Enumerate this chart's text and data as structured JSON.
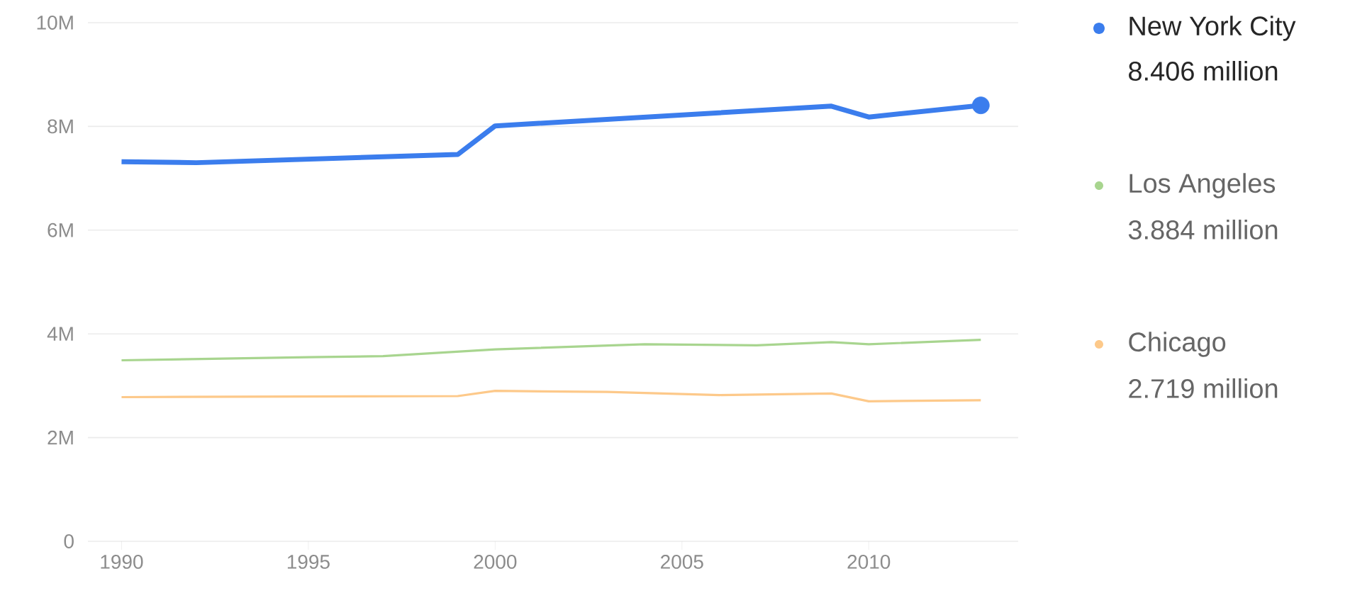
{
  "chart_data": {
    "type": "line",
    "xlim": [
      1989.1,
      2014
    ],
    "ylim": [
      0,
      10
    ],
    "xticks": [
      1990,
      1995,
      2000,
      2005,
      2010
    ],
    "yticks": [
      {
        "value": 0,
        "label": "0"
      },
      {
        "value": 2,
        "label": "2M"
      },
      {
        "value": 4,
        "label": "4M"
      },
      {
        "value": 6,
        "label": "6M"
      },
      {
        "value": 8,
        "label": "8M"
      },
      {
        "value": 10,
        "label": "10M"
      }
    ],
    "grid": "y",
    "legend": "right",
    "marker": "none",
    "line_style": "solid",
    "series": [
      {
        "name": "New York City",
        "color": "#3b7ded",
        "x": [
          1990,
          1992,
          1999,
          2000,
          2009,
          2010,
          2013
        ],
        "values": [
          7.32,
          7.3,
          7.46,
          8.01,
          8.39,
          8.18,
          8.406
        ]
      },
      {
        "name": "Los Angeles",
        "color": "#a8d58f",
        "x": [
          1990,
          1995,
          1997,
          2000,
          2004,
          2007,
          2009,
          2010,
          2013
        ],
        "values": [
          3.49,
          3.55,
          3.57,
          3.7,
          3.8,
          3.78,
          3.84,
          3.8,
          3.884
        ]
      },
      {
        "name": "Chicago",
        "color": "#fdc98a",
        "x": [
          1990,
          1999,
          2000,
          2003,
          2006,
          2009,
          2010,
          2013
        ],
        "values": [
          2.78,
          2.8,
          2.9,
          2.88,
          2.82,
          2.85,
          2.7,
          2.719
        ]
      }
    ],
    "annotations": [
      "8.406 million",
      "3.884 million",
      "2.719 million"
    ]
  }
}
